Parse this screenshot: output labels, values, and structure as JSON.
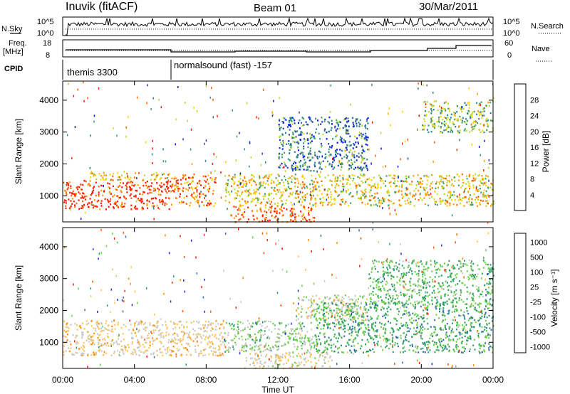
{
  "header": {
    "station": "Inuvik (fitACF)",
    "beam": "Beam 01",
    "date": "30/Mar/2011"
  },
  "panels": {
    "nsky": {
      "label": "N.Sky",
      "yticks": [
        "10^5",
        "10^0"
      ],
      "right_label": "N.Search",
      "right_yticks": [
        "10^5",
        "10^0"
      ]
    },
    "freq": {
      "label_line1": "Freq.",
      "label_line2": "[MHz]",
      "yticks": [
        "18",
        "8"
      ],
      "right_label": "Nave",
      "right_yticks": [
        "60",
        "0"
      ]
    },
    "cpid": {
      "label": "CPID",
      "segments": [
        {
          "start_hour": 0,
          "text": "themis 3300"
        },
        {
          "start_hour": 6,
          "text": "normalsound (fast) -157"
        }
      ]
    }
  },
  "colors": {
    "power_scale": [
      "#0014ff",
      "#2040b0",
      "#2e7f8f",
      "#3c9f6a",
      "#b8d830",
      "#ffd000",
      "#ff9a00",
      "#ff6000",
      "#ff1800"
    ],
    "velocity_scale": [
      "#ff1a00",
      "#ff5500",
      "#ff8c00",
      "#ffc45a",
      "#c8c8c8",
      "#6cd04a",
      "#2f9f6a",
      "#3a6fb0",
      "#1a30d8"
    ]
  },
  "chart_data": [
    {
      "type": "heatmap",
      "title": "Power",
      "ylabel": "Slant Range [km]",
      "ylim": [
        180,
        4600
      ],
      "yticks": [
        1000,
        2000,
        3000,
        4000
      ],
      "colorbar": {
        "label": "Power [dB]",
        "ticks": [
          "4",
          "8",
          "12",
          "16",
          "20",
          "24",
          "28"
        ],
        "range": [
          0,
          30
        ]
      },
      "bands": [
        {
          "x": [
            0,
            6
          ],
          "y": [
            600,
            1500
          ],
          "value": 28
        },
        {
          "x": [
            1.5,
            6
          ],
          "y": [
            1500,
            1750
          ],
          "value": 20
        },
        {
          "x": [
            6,
            8.5
          ],
          "y": [
            700,
            1700
          ],
          "value": 24
        },
        {
          "x": [
            9,
            24
          ],
          "y": [
            700,
            1700
          ],
          "value": 18
        },
        {
          "x": [
            9.5,
            14
          ],
          "y": [
            200,
            700
          ],
          "value": 26
        },
        {
          "x": [
            12,
            17
          ],
          "y": [
            1800,
            3500
          ],
          "value": 8
        },
        {
          "x": [
            20,
            24
          ],
          "y": [
            3000,
            4000
          ],
          "value": 14
        }
      ]
    },
    {
      "type": "heatmap",
      "title": "Velocity",
      "ylabel": "Slant Range [km]",
      "ylim": [
        180,
        4600
      ],
      "yticks": [
        1000,
        2000,
        3000,
        4000
      ],
      "xlabel": "Time UT",
      "x_tick_labels": [
        "00:00",
        "04:00",
        "08:00",
        "12:00",
        "16:00",
        "20:00",
        "00:00"
      ],
      "xlim": [
        0,
        24
      ],
      "colorbar": {
        "label": "Velocity [m s⁻¹]",
        "ticks": [
          "1000",
          "500",
          "100",
          "25",
          "-25",
          "-100",
          "-500",
          "-1000"
        ],
        "range": [
          -1000,
          1000
        ]
      },
      "bands": [
        {
          "x": [
            0,
            9
          ],
          "y": [
            600,
            1700
          ],
          "value": 150
        },
        {
          "x": [
            9,
            14
          ],
          "y": [
            700,
            1700
          ],
          "value": -150
        },
        {
          "x": [
            14,
            24
          ],
          "y": [
            700,
            2300
          ],
          "value": -400
        },
        {
          "x": [
            13,
            17
          ],
          "y": [
            1700,
            2500
          ],
          "value": 0
        },
        {
          "x": [
            17,
            24
          ],
          "y": [
            2200,
            3600
          ],
          "value": -300
        },
        {
          "x": [
            10,
            15
          ],
          "y": [
            200,
            700
          ],
          "value": 80
        }
      ]
    }
  ],
  "axes": {
    "xlabel": "Time UT",
    "x_tick_labels": [
      "00:00",
      "04:00",
      "08:00",
      "12:00",
      "16:00",
      "20:00",
      "00:00"
    ]
  }
}
